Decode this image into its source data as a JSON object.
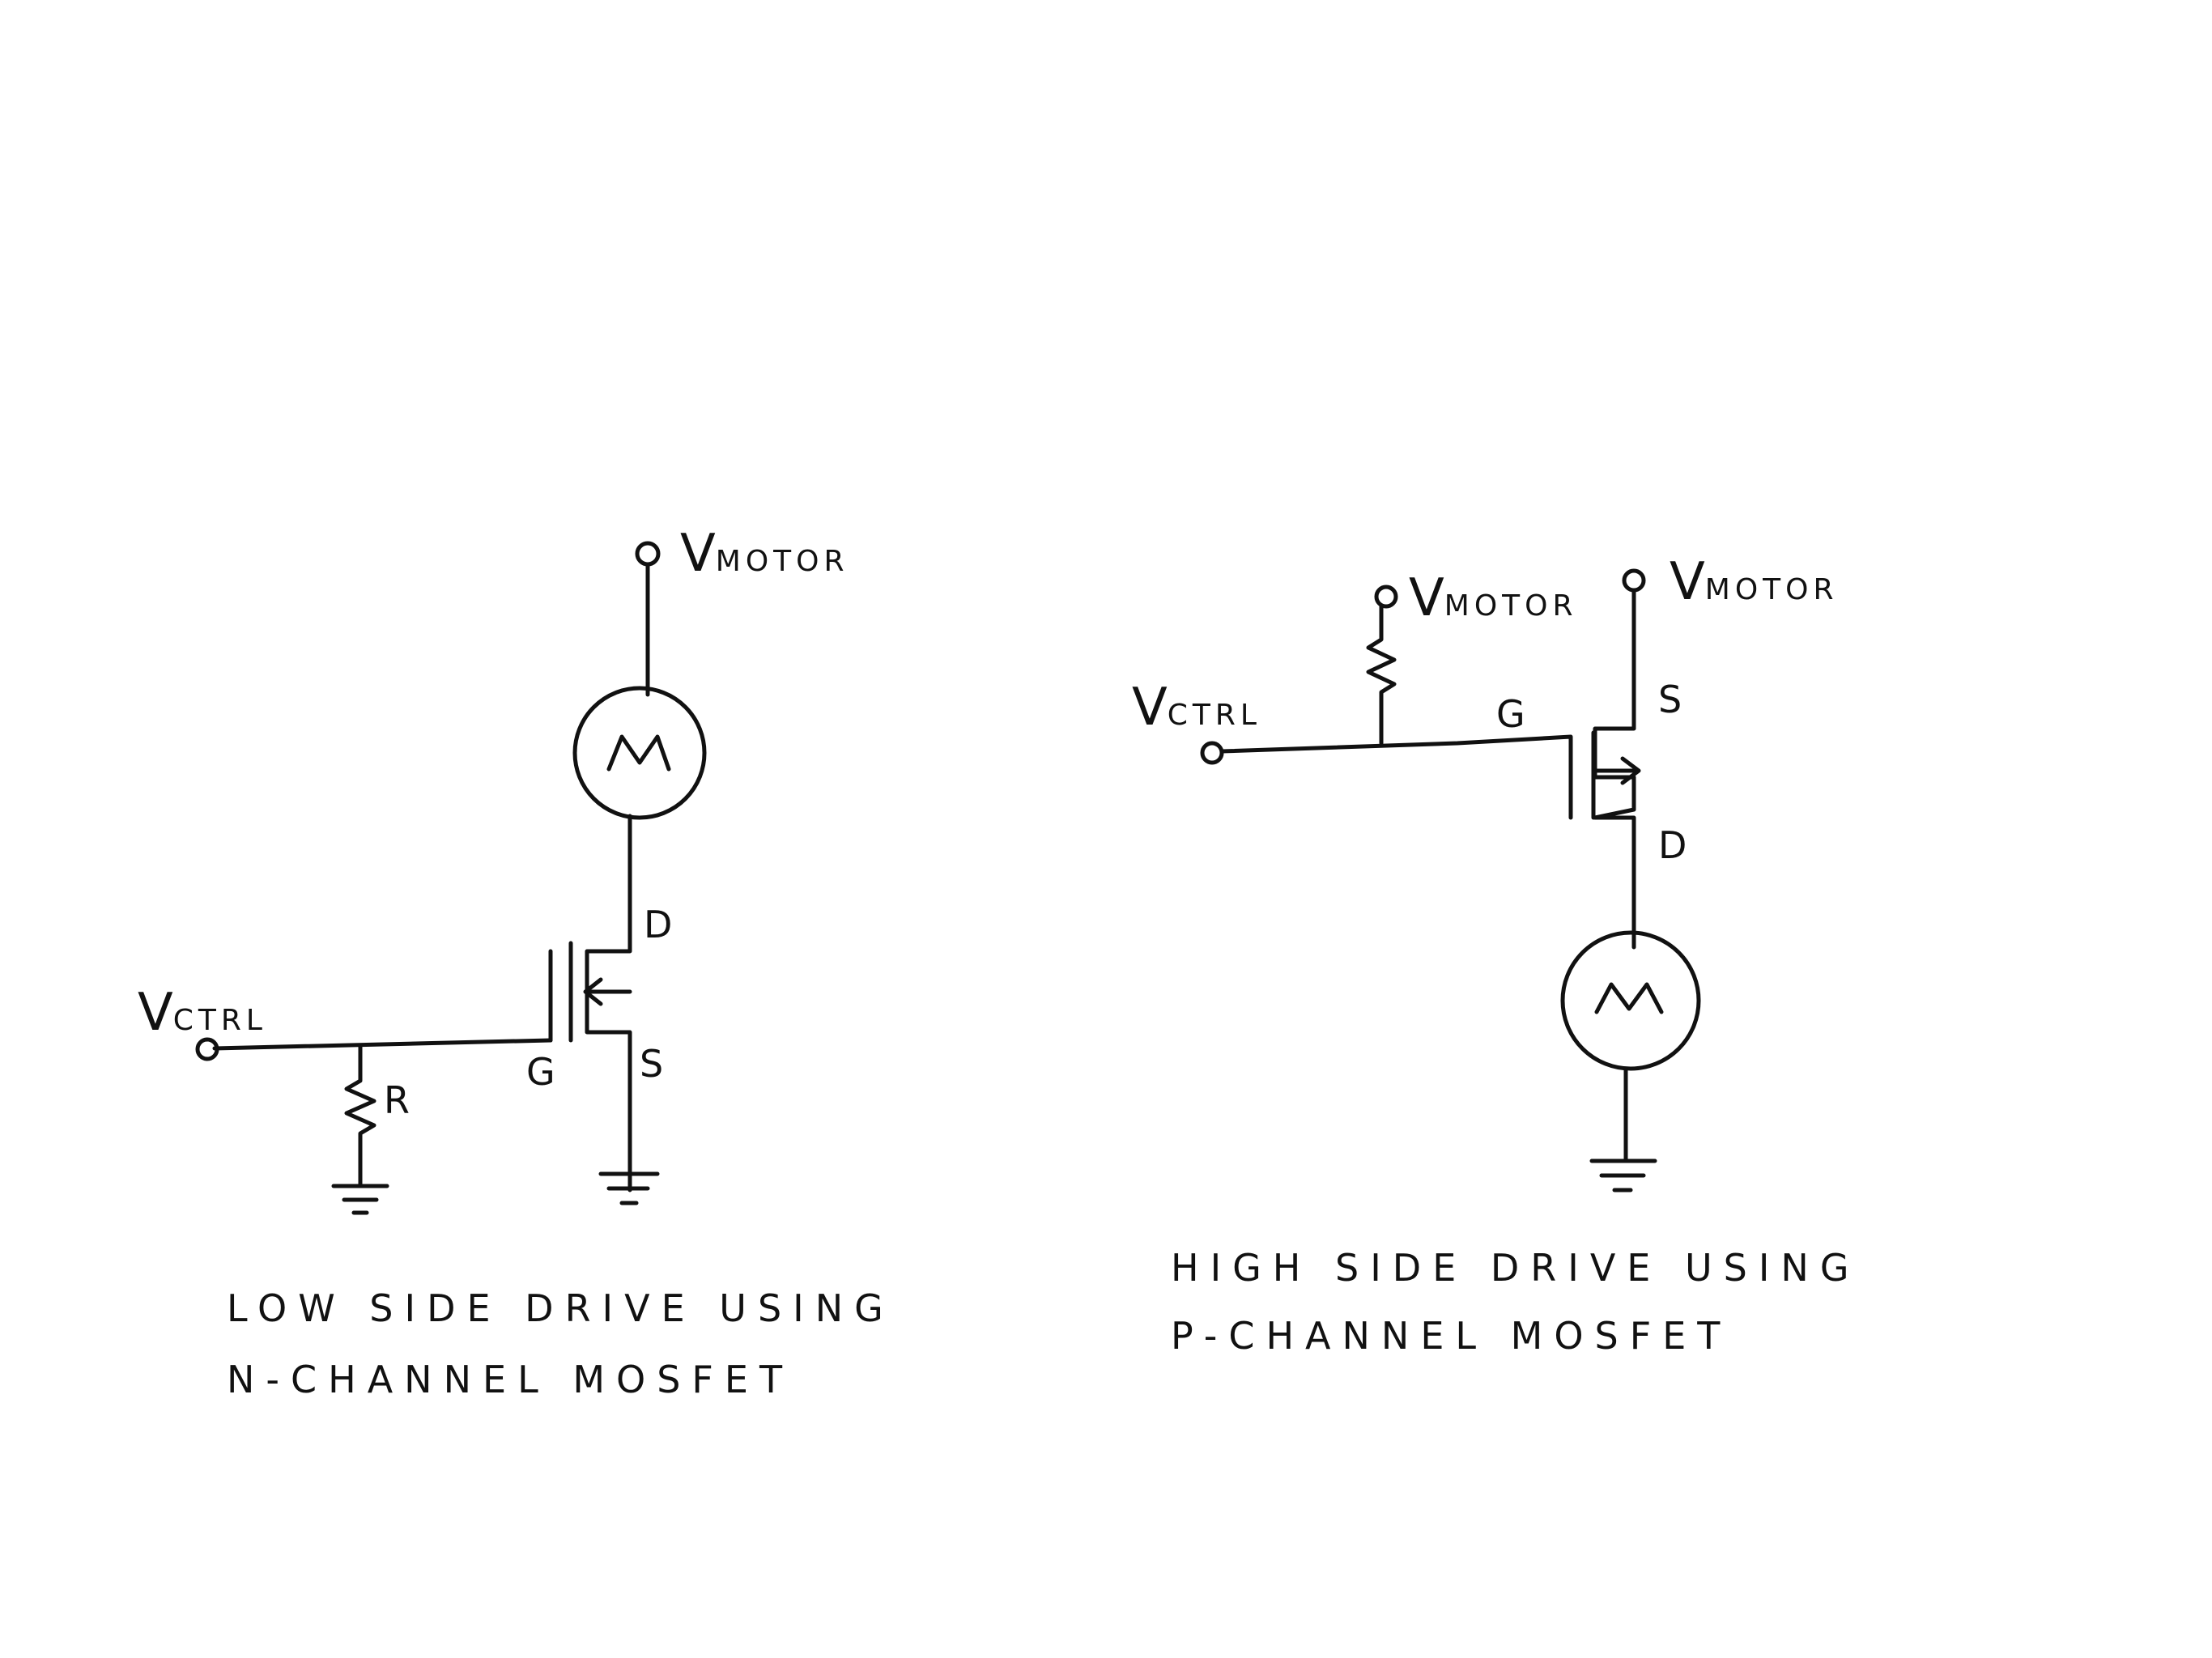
{
  "left_circuit": {
    "vmotor": {
      "v": "V",
      "sub": "MOTOR"
    },
    "vctrl": {
      "v": "V",
      "sub": "CTRL"
    },
    "motor_symbol": "M",
    "labels": {
      "drain": "D",
      "source": "S",
      "gate": "G",
      "resistor": "R"
    },
    "caption": [
      "LOW SIDE DRIVE USING",
      "N-CHANNEL MOSFET"
    ]
  },
  "right_circuit": {
    "vmotor_pullup": {
      "v": "V",
      "sub": "MOTOR"
    },
    "vmotor_supply": {
      "v": "V",
      "sub": "MOTOR"
    },
    "vctrl": {
      "v": "V",
      "sub": "CTRL"
    },
    "motor_symbol": "M",
    "labels": {
      "drain": "D",
      "source": "S",
      "gate": "G"
    },
    "caption": [
      "HIGH SIDE DRIVE USING",
      "P-CHANNEL MOSFET"
    ]
  }
}
